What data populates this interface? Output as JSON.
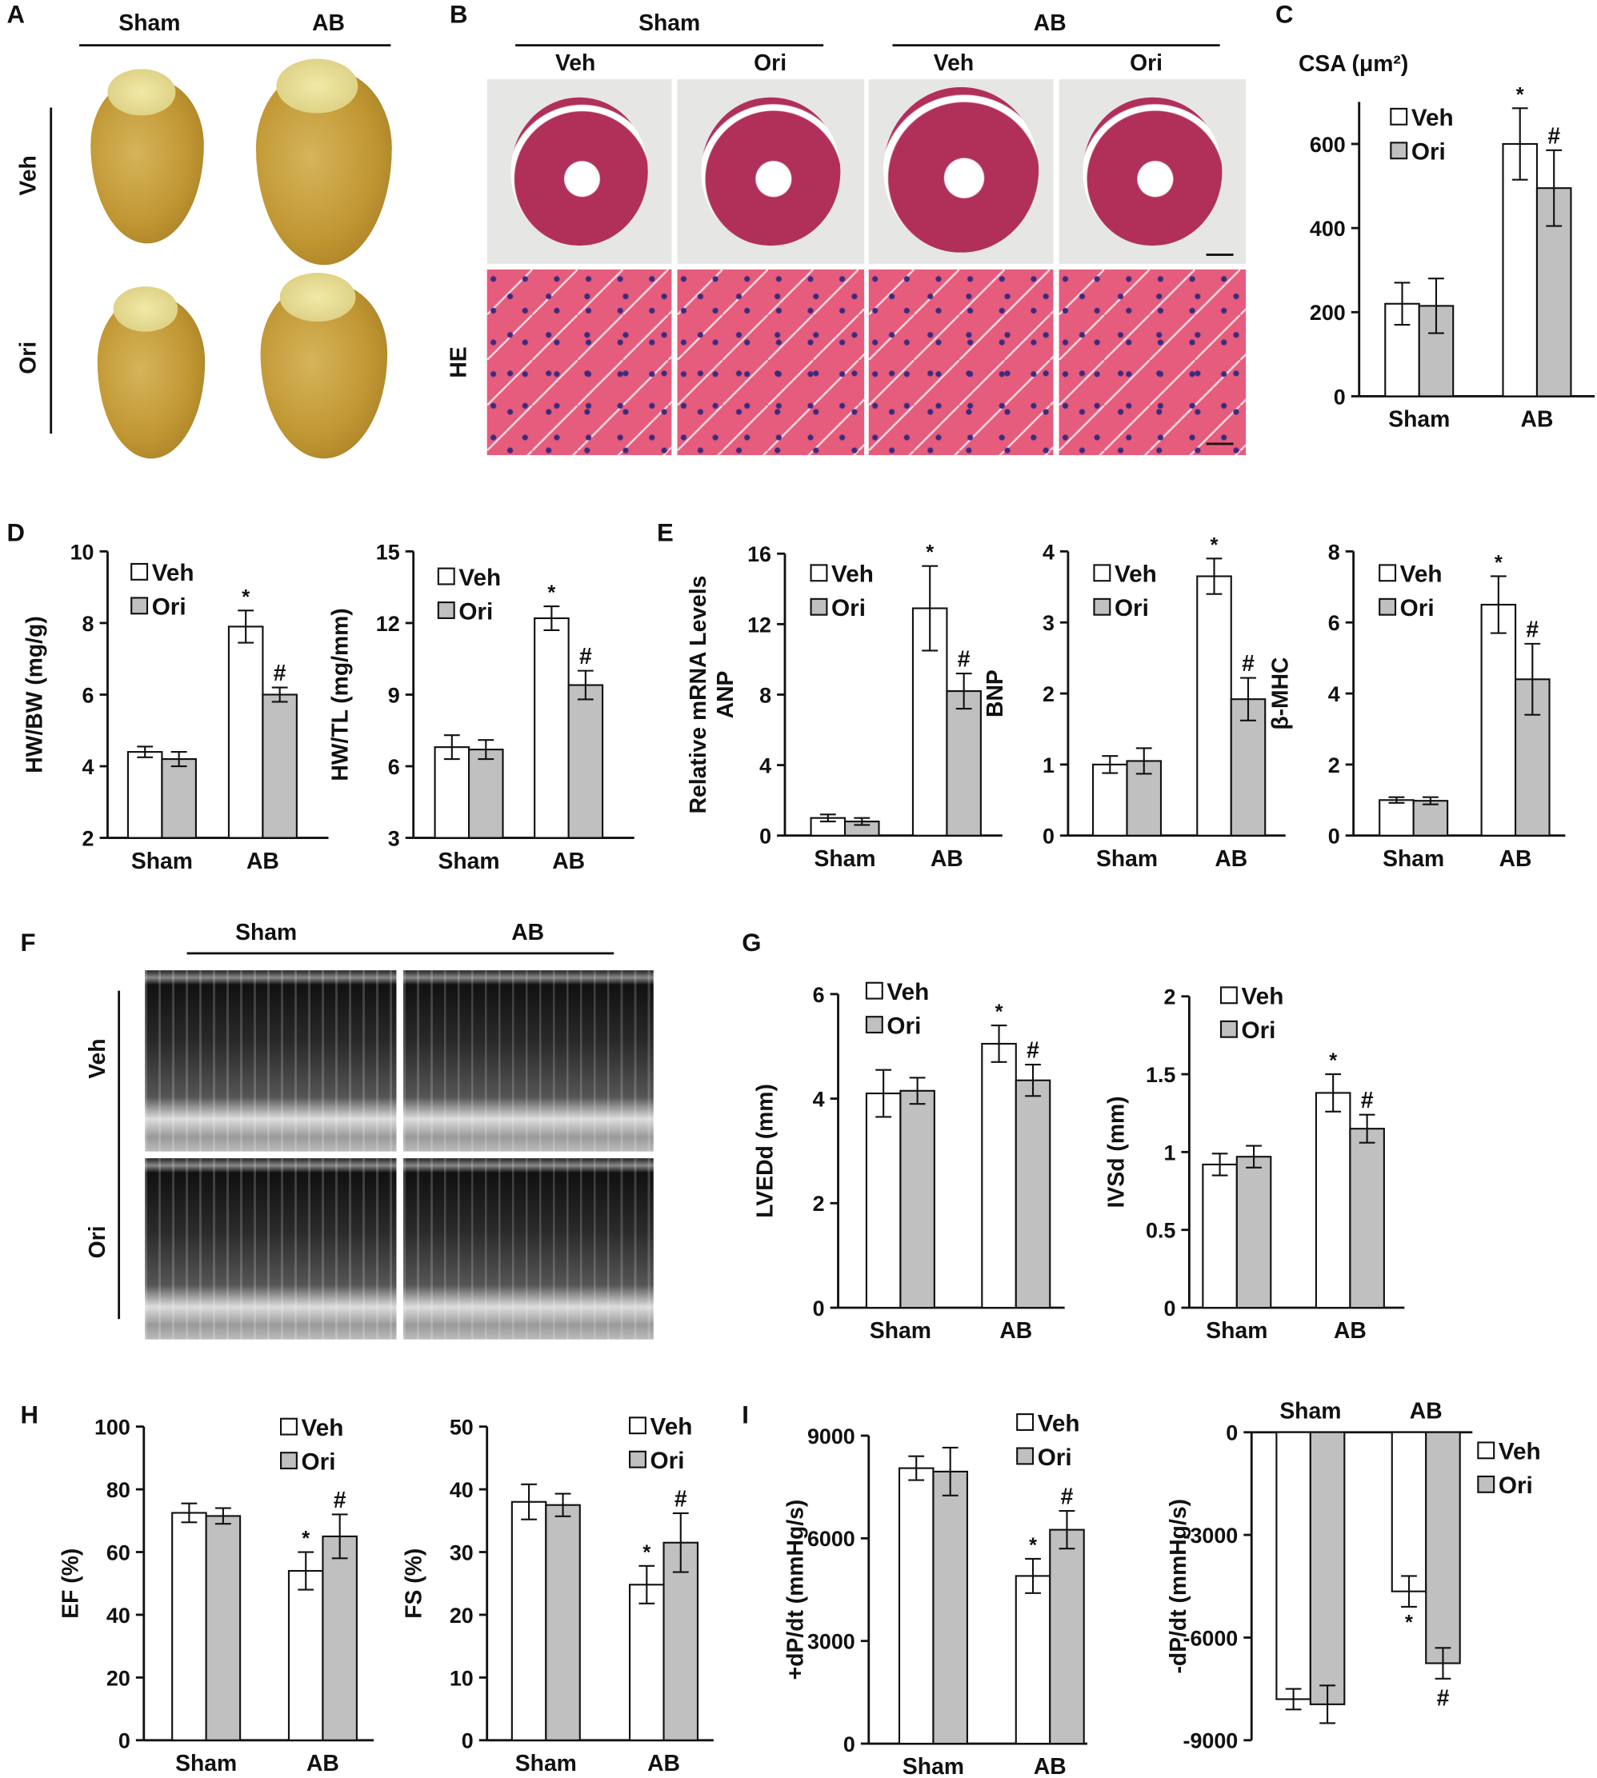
{
  "panels": {
    "A": {
      "letter": "A",
      "groups": [
        "Sham",
        "AB"
      ],
      "rows": [
        "Veh",
        "Ori"
      ]
    },
    "B": {
      "letter": "B",
      "groups": [
        "Sham",
        "AB"
      ],
      "subgroups": [
        "Veh",
        "Ori",
        "Veh",
        "Ori"
      ],
      "row_label": "HE"
    },
    "C": {
      "letter": "C"
    },
    "D": {
      "letter": "D"
    },
    "E": {
      "letter": "E"
    },
    "F": {
      "letter": "F",
      "groups": [
        "Sham",
        "AB"
      ],
      "rows": [
        "Veh",
        "Ori"
      ]
    },
    "G": {
      "letter": "G"
    },
    "H": {
      "letter": "H"
    },
    "I": {
      "letter": "I"
    }
  },
  "colors": {
    "Veh": "#ffffff",
    "Ori": "#c0c0c0",
    "stroke": "#111111"
  },
  "chart_data": [
    {
      "type": "bar",
      "title": "CSA (μm²)",
      "ylabel": "",
      "categories": [
        "Sham",
        "AB"
      ],
      "ylim": [
        0,
        700
      ],
      "yticks": [
        0,
        200,
        400,
        600
      ],
      "series": [
        {
          "name": "Veh",
          "values": [
            220,
            600
          ],
          "errors": [
            50,
            85
          ]
        },
        {
          "name": "Ori",
          "values": [
            215,
            495
          ],
          "errors": [
            65,
            90
          ]
        }
      ],
      "annotations": [
        {
          "category": "AB",
          "series": "Veh",
          "text": "*"
        },
        {
          "category": "AB",
          "series": "Ori",
          "text": "#"
        }
      ]
    },
    {
      "type": "bar",
      "ylabel": "HW/BW (mg/g)",
      "categories": [
        "Sham",
        "AB"
      ],
      "ylim": [
        2,
        10
      ],
      "yticks": [
        2,
        4,
        6,
        8,
        10
      ],
      "series": [
        {
          "name": "Veh",
          "values": [
            4.4,
            7.9
          ],
          "errors": [
            0.15,
            0.45
          ]
        },
        {
          "name": "Ori",
          "values": [
            4.2,
            6.0
          ],
          "errors": [
            0.2,
            0.2
          ]
        }
      ],
      "annotations": [
        {
          "category": "AB",
          "series": "Veh",
          "text": "*"
        },
        {
          "category": "AB",
          "series": "Ori",
          "text": "#"
        }
      ]
    },
    {
      "type": "bar",
      "ylabel": "HW/TL (mg/mm)",
      "categories": [
        "Sham",
        "AB"
      ],
      "ylim": [
        3,
        15
      ],
      "yticks": [
        3,
        6,
        9,
        12,
        15
      ],
      "series": [
        {
          "name": "Veh",
          "values": [
            6.8,
            12.2
          ],
          "errors": [
            0.5,
            0.5
          ]
        },
        {
          "name": "Ori",
          "values": [
            6.7,
            9.4
          ],
          "errors": [
            0.4,
            0.6
          ]
        }
      ],
      "annotations": [
        {
          "category": "AB",
          "series": "Veh",
          "text": "*"
        },
        {
          "category": "AB",
          "series": "Ori",
          "text": "#"
        }
      ]
    },
    {
      "type": "bar",
      "ylabel": "Relative mRNA Levels",
      "ylabel2": "ANP",
      "categories": [
        "Sham",
        "AB"
      ],
      "ylim": [
        0,
        16
      ],
      "yticks": [
        0,
        4,
        8,
        12,
        16
      ],
      "series": [
        {
          "name": "Veh",
          "values": [
            1.0,
            12.9
          ],
          "errors": [
            0.2,
            2.4
          ]
        },
        {
          "name": "Ori",
          "values": [
            0.8,
            8.2
          ],
          "errors": [
            0.2,
            1.0
          ]
        }
      ],
      "annotations": [
        {
          "category": "AB",
          "series": "Veh",
          "text": "*"
        },
        {
          "category": "AB",
          "series": "Ori",
          "text": "#"
        }
      ]
    },
    {
      "type": "bar",
      "ylabel": "BNP",
      "categories": [
        "Sham",
        "AB"
      ],
      "ylim": [
        0,
        4
      ],
      "yticks": [
        0,
        1,
        2,
        3,
        4
      ],
      "series": [
        {
          "name": "Veh",
          "values": [
            1.0,
            3.65
          ],
          "errors": [
            0.12,
            0.25
          ]
        },
        {
          "name": "Ori",
          "values": [
            1.05,
            1.92
          ],
          "errors": [
            0.18,
            0.3
          ]
        }
      ],
      "annotations": [
        {
          "category": "AB",
          "series": "Veh",
          "text": "*"
        },
        {
          "category": "AB",
          "series": "Ori",
          "text": "#"
        }
      ]
    },
    {
      "type": "bar",
      "ylabel": "β-MHC",
      "categories": [
        "Sham",
        "AB"
      ],
      "ylim": [
        0,
        8
      ],
      "yticks": [
        0,
        2,
        4,
        6,
        8
      ],
      "series": [
        {
          "name": "Veh",
          "values": [
            1.0,
            6.5
          ],
          "errors": [
            0.08,
            0.8
          ]
        },
        {
          "name": "Ori",
          "values": [
            0.98,
            4.4
          ],
          "errors": [
            0.1,
            1.0
          ]
        }
      ],
      "annotations": [
        {
          "category": "AB",
          "series": "Veh",
          "text": "*"
        },
        {
          "category": "AB",
          "series": "Ori",
          "text": "#"
        }
      ]
    },
    {
      "type": "bar",
      "ylabel": "LVEDd (mm)",
      "categories": [
        "Sham",
        "AB"
      ],
      "ylim": [
        0,
        6
      ],
      "yticks": [
        0,
        2,
        4,
        6
      ],
      "series": [
        {
          "name": "Veh",
          "values": [
            4.1,
            5.05
          ],
          "errors": [
            0.45,
            0.35
          ]
        },
        {
          "name": "Ori",
          "values": [
            4.15,
            4.35
          ],
          "errors": [
            0.25,
            0.3
          ]
        }
      ],
      "annotations": [
        {
          "category": "AB",
          "series": "Veh",
          "text": "*"
        },
        {
          "category": "AB",
          "series": "Ori",
          "text": "#"
        }
      ]
    },
    {
      "type": "bar",
      "ylabel": "IVSd (mm)",
      "categories": [
        "Sham",
        "AB"
      ],
      "ylim": [
        0,
        2
      ],
      "yticks": [
        0,
        0.5,
        1,
        1.5,
        2
      ],
      "series": [
        {
          "name": "Veh",
          "values": [
            0.92,
            1.38
          ],
          "errors": [
            0.07,
            0.12
          ]
        },
        {
          "name": "Ori",
          "values": [
            0.97,
            1.15
          ],
          "errors": [
            0.07,
            0.09
          ]
        }
      ],
      "annotations": [
        {
          "category": "AB",
          "series": "Veh",
          "text": "*"
        },
        {
          "category": "AB",
          "series": "Ori",
          "text": "#"
        }
      ]
    },
    {
      "type": "bar",
      "ylabel": "EF (%)",
      "categories": [
        "Sham",
        "AB"
      ],
      "ylim": [
        0,
        100
      ],
      "yticks": [
        0,
        20,
        40,
        60,
        80,
        100
      ],
      "series": [
        {
          "name": "Veh",
          "values": [
            72.5,
            54
          ],
          "errors": [
            3,
            6
          ]
        },
        {
          "name": "Ori",
          "values": [
            71.5,
            65
          ],
          "errors": [
            2.5,
            7
          ]
        }
      ],
      "annotations": [
        {
          "category": "AB",
          "series": "Veh",
          "text": "*"
        },
        {
          "category": "AB",
          "series": "Ori",
          "text": "#"
        }
      ]
    },
    {
      "type": "bar",
      "ylabel": "FS (%)",
      "categories": [
        "Sham",
        "AB"
      ],
      "ylim": [
        0,
        50
      ],
      "yticks": [
        0,
        10,
        20,
        30,
        40,
        50
      ],
      "series": [
        {
          "name": "Veh",
          "values": [
            38,
            24.8
          ],
          "errors": [
            2.8,
            3
          ]
        },
        {
          "name": "Ori",
          "values": [
            37.5,
            31.5
          ],
          "errors": [
            1.8,
            4.7
          ]
        }
      ],
      "annotations": [
        {
          "category": "AB",
          "series": "Veh",
          "text": "*"
        },
        {
          "category": "AB",
          "series": "Ori",
          "text": "#"
        }
      ]
    },
    {
      "type": "bar",
      "ylabel": "+dP/dt (mmHg/s)",
      "categories": [
        "Sham",
        "AB"
      ],
      "ylim": [
        0,
        9000
      ],
      "yticks": [
        0,
        3000,
        6000,
        9000
      ],
      "series": [
        {
          "name": "Veh",
          "values": [
            8050,
            4900
          ],
          "errors": [
            350,
            500
          ]
        },
        {
          "name": "Ori",
          "values": [
            7950,
            6250
          ],
          "errors": [
            700,
            550
          ]
        }
      ],
      "annotations": [
        {
          "category": "AB",
          "series": "Veh",
          "text": "*"
        },
        {
          "category": "AB",
          "series": "Ori",
          "text": "#"
        }
      ]
    },
    {
      "type": "bar",
      "ylabel": "-dP/dt (mmHg/s)",
      "categories": [
        "Sham",
        "AB"
      ],
      "ylim": [
        -9000,
        0
      ],
      "yticks": [
        0,
        -3000,
        -6000,
        -9000
      ],
      "series": [
        {
          "name": "Veh",
          "values": [
            -7800,
            -4650
          ],
          "errors": [
            300,
            450
          ]
        },
        {
          "name": "Ori",
          "values": [
            -7950,
            -6750
          ],
          "errors": [
            550,
            450
          ]
        }
      ],
      "annotations": [
        {
          "category": "AB",
          "series": "Veh",
          "text": "*"
        },
        {
          "category": "AB",
          "series": "Ori",
          "text": "#"
        }
      ]
    }
  ]
}
